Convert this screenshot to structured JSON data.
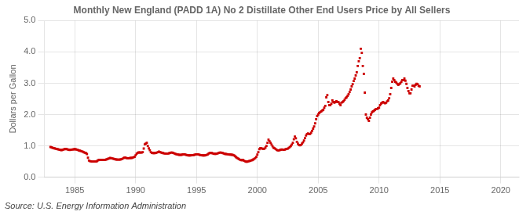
{
  "chart_data": {
    "type": "scatter",
    "title": "Monthly New England (PADD 1A) No 2 Distillate Other End Users Price by All Sellers",
    "ylabel": "Dollars per Gallon",
    "annotations": [
      "Source: U.S. Energy Information Administration"
    ],
    "color": "#CC0000",
    "marker": "square",
    "grid": true,
    "xlim": [
      1982.5,
      2021.5
    ],
    "ylim": [
      0.0,
      5.0
    ],
    "xticks": [
      1985,
      1990,
      1995,
      2000,
      2005,
      2010,
      2015,
      2020
    ],
    "yticks": [
      {
        "value": 0.0,
        "label": "0.0"
      },
      {
        "value": 1.0,
        "label": "1.0"
      },
      {
        "value": 2.0,
        "label": "2.0"
      },
      {
        "value": 3.0,
        "label": "3.0"
      },
      {
        "value": 4.0,
        "label": "4.0"
      },
      {
        "value": 5.0,
        "label": "5.0"
      }
    ],
    "x": [
      1983.0,
      1983.083,
      1983.167,
      1983.25,
      1983.333,
      1983.417,
      1983.5,
      1983.583,
      1983.667,
      1983.75,
      1983.833,
      1983.917,
      1984.0,
      1984.083,
      1984.167,
      1984.25,
      1984.333,
      1984.417,
      1984.5,
      1984.583,
      1984.667,
      1984.75,
      1984.833,
      1984.917,
      1985.0,
      1985.083,
      1985.167,
      1985.25,
      1985.333,
      1985.417,
      1985.5,
      1985.583,
      1985.667,
      1985.75,
      1985.833,
      1985.917,
      1986.0,
      1986.083,
      1986.167,
      1986.25,
      1986.333,
      1986.417,
      1986.5,
      1986.583,
      1986.667,
      1986.75,
      1986.833,
      1986.917,
      1987.0,
      1987.083,
      1987.167,
      1987.25,
      1987.333,
      1987.417,
      1987.5,
      1987.583,
      1987.667,
      1987.75,
      1987.833,
      1987.917,
      1988.0,
      1988.083,
      1988.167,
      1988.25,
      1988.333,
      1988.417,
      1988.5,
      1988.583,
      1988.667,
      1988.75,
      1988.833,
      1988.917,
      1989.0,
      1989.083,
      1989.167,
      1989.25,
      1989.333,
      1989.417,
      1989.5,
      1989.583,
      1989.667,
      1989.75,
      1989.833,
      1989.917,
      1990.0,
      1990.083,
      1990.167,
      1990.25,
      1990.333,
      1990.417,
      1990.5,
      1990.583,
      1990.667,
      1990.75,
      1990.833,
      1990.917,
      1991.0,
      1991.083,
      1991.167,
      1991.25,
      1991.333,
      1991.417,
      1991.5,
      1991.583,
      1991.667,
      1991.75,
      1991.833,
      1991.917,
      1992.0,
      1992.083,
      1992.167,
      1992.25,
      1992.333,
      1992.417,
      1992.5,
      1992.583,
      1992.667,
      1992.75,
      1992.833,
      1992.917,
      1993.0,
      1993.083,
      1993.167,
      1993.25,
      1993.333,
      1993.417,
      1993.5,
      1993.583,
      1993.667,
      1993.75,
      1993.833,
      1993.917,
      1994.0,
      1994.083,
      1994.167,
      1994.25,
      1994.333,
      1994.417,
      1994.5,
      1994.583,
      1994.667,
      1994.75,
      1994.833,
      1994.917,
      1995.0,
      1995.083,
      1995.167,
      1995.25,
      1995.333,
      1995.417,
      1995.5,
      1995.583,
      1995.667,
      1995.75,
      1995.833,
      1995.917,
      1996.0,
      1996.083,
      1996.167,
      1996.25,
      1996.333,
      1996.417,
      1996.5,
      1996.583,
      1996.667,
      1996.75,
      1996.833,
      1996.917,
      1997.0,
      1997.083,
      1997.167,
      1997.25,
      1997.333,
      1997.417,
      1997.5,
      1997.583,
      1997.667,
      1997.75,
      1997.833,
      1997.917,
      1998.0,
      1998.083,
      1998.167,
      1998.25,
      1998.333,
      1998.417,
      1998.5,
      1998.583,
      1998.667,
      1998.75,
      1998.833,
      1998.917,
      1999.0,
      1999.083,
      1999.167,
      1999.25,
      1999.333,
      1999.417,
      1999.5,
      1999.583,
      1999.667,
      1999.75,
      1999.833,
      1999.917,
      2000.0,
      2000.083,
      2000.167,
      2000.25,
      2000.333,
      2000.417,
      2000.5,
      2000.583,
      2000.667,
      2000.75,
      2000.833,
      2000.917,
      2001.0,
      2001.083,
      2001.167,
      2001.25,
      2001.333,
      2001.417,
      2001.5,
      2001.583,
      2001.667,
      2001.75,
      2001.833,
      2001.917,
      2002.0,
      2002.083,
      2002.167,
      2002.25,
      2002.333,
      2002.417,
      2002.5,
      2002.583,
      2002.667,
      2002.75,
      2002.833,
      2002.917,
      2003.0,
      2003.083,
      2003.167,
      2003.25,
      2003.333,
      2003.417,
      2003.5,
      2003.583,
      2003.667,
      2003.75,
      2003.833,
      2003.917,
      2004.0,
      2004.083,
      2004.167,
      2004.25,
      2004.333,
      2004.417,
      2004.5,
      2004.583,
      2004.667,
      2004.75,
      2004.833,
      2004.917,
      2005.0,
      2005.083,
      2005.167,
      2005.25,
      2005.333,
      2005.417,
      2005.5,
      2005.583,
      2005.667,
      2005.75,
      2005.833,
      2005.917,
      2006.0,
      2006.083,
      2006.167,
      2006.25,
      2006.333,
      2006.417,
      2006.5,
      2006.583,
      2006.667,
      2006.75,
      2006.833,
      2006.917,
      2007.0,
      2007.083,
      2007.167,
      2007.25,
      2007.333,
      2007.417,
      2007.5,
      2007.583,
      2007.667,
      2007.75,
      2007.833,
      2007.917,
      2008.0,
      2008.083,
      2008.167,
      2008.25,
      2008.333,
      2008.417,
      2008.5,
      2008.583,
      2008.667,
      2008.75,
      2008.833,
      2008.917,
      2009.0,
      2009.083,
      2009.167,
      2009.25,
      2009.333,
      2009.417,
      2009.5,
      2009.583,
      2009.667,
      2009.75,
      2009.833,
      2009.917,
      2010.0,
      2010.083,
      2010.167,
      2010.25,
      2010.333,
      2010.417,
      2010.5,
      2010.583,
      2010.667,
      2010.75,
      2010.833,
      2010.917,
      2011.0,
      2011.083,
      2011.167,
      2011.25,
      2011.333,
      2011.417,
      2011.5,
      2011.583,
      2011.667,
      2011.75,
      2011.833,
      2011.917,
      2012.0,
      2012.083,
      2012.167,
      2012.25,
      2012.333,
      2012.417,
      2012.5,
      2012.583,
      2012.667,
      2012.75,
      2012.833,
      2012.917,
      2013.0,
      2013.083,
      2013.167,
      2013.25,
      2013.333
    ],
    "values": [
      0.965,
      0.955,
      0.94,
      0.93,
      0.92,
      0.91,
      0.9,
      0.895,
      0.885,
      0.875,
      0.87,
      0.865,
      0.875,
      0.885,
      0.895,
      0.905,
      0.895,
      0.885,
      0.875,
      0.87,
      0.875,
      0.88,
      0.885,
      0.89,
      0.895,
      0.89,
      0.88,
      0.87,
      0.855,
      0.845,
      0.835,
      0.825,
      0.81,
      0.795,
      0.78,
      0.77,
      0.74,
      0.62,
      0.53,
      0.51,
      0.505,
      0.5,
      0.5,
      0.5,
      0.5,
      0.5,
      0.515,
      0.54,
      0.555,
      0.555,
      0.555,
      0.555,
      0.555,
      0.555,
      0.555,
      0.565,
      0.575,
      0.59,
      0.6,
      0.615,
      0.6,
      0.6,
      0.59,
      0.58,
      0.57,
      0.565,
      0.56,
      0.56,
      0.56,
      0.565,
      0.575,
      0.585,
      0.61,
      0.625,
      0.62,
      0.61,
      0.605,
      0.605,
      0.61,
      0.615,
      0.615,
      0.625,
      0.635,
      0.65,
      0.7,
      0.75,
      0.78,
      0.79,
      0.79,
      0.785,
      0.785,
      0.8,
      0.915,
      1.05,
      1.07,
      1.1,
      1.0,
      0.92,
      0.86,
      0.8,
      0.775,
      0.77,
      0.77,
      0.77,
      0.775,
      0.785,
      0.8,
      0.815,
      0.8,
      0.79,
      0.78,
      0.77,
      0.76,
      0.755,
      0.755,
      0.755,
      0.755,
      0.765,
      0.775,
      0.785,
      0.785,
      0.775,
      0.76,
      0.745,
      0.735,
      0.725,
      0.72,
      0.715,
      0.71,
      0.715,
      0.72,
      0.73,
      0.73,
      0.72,
      0.71,
      0.7,
      0.695,
      0.695,
      0.695,
      0.7,
      0.7,
      0.705,
      0.715,
      0.725,
      0.73,
      0.73,
      0.725,
      0.715,
      0.705,
      0.7,
      0.695,
      0.695,
      0.695,
      0.7,
      0.71,
      0.725,
      0.755,
      0.77,
      0.775,
      0.77,
      0.76,
      0.75,
      0.745,
      0.745,
      0.75,
      0.76,
      0.775,
      0.785,
      0.785,
      0.78,
      0.77,
      0.755,
      0.745,
      0.74,
      0.735,
      0.73,
      0.725,
      0.72,
      0.72,
      0.715,
      0.71,
      0.695,
      0.67,
      0.64,
      0.615,
      0.595,
      0.575,
      0.555,
      0.545,
      0.545,
      0.545,
      0.525,
      0.505,
      0.495,
      0.495,
      0.505,
      0.515,
      0.525,
      0.535,
      0.545,
      0.565,
      0.585,
      0.61,
      0.65,
      0.72,
      0.8,
      0.895,
      0.93,
      0.92,
      0.91,
      0.9,
      0.91,
      0.945,
      1.0,
      1.1,
      1.2,
      1.15,
      1.1,
      1.04,
      0.985,
      0.94,
      0.925,
      0.9,
      0.875,
      0.855,
      0.855,
      0.865,
      0.875,
      0.885,
      0.88,
      0.875,
      0.88,
      0.895,
      0.905,
      0.91,
      0.935,
      0.96,
      0.995,
      1.04,
      1.1,
      1.21,
      1.3,
      1.24,
      1.13,
      1.07,
      1.03,
      1.02,
      1.03,
      1.07,
      1.11,
      1.17,
      1.25,
      1.33,
      1.38,
      1.4,
      1.38,
      1.38,
      1.42,
      1.48,
      1.55,
      1.62,
      1.72,
      1.85,
      1.95,
      2.0,
      2.05,
      2.08,
      2.1,
      2.13,
      2.15,
      2.22,
      2.28,
      2.55,
      2.62,
      2.4,
      2.3,
      2.3,
      2.35,
      2.45,
      2.4,
      2.38,
      2.4,
      2.43,
      2.4,
      2.4,
      2.35,
      2.3,
      2.38,
      2.4,
      2.43,
      2.47,
      2.52,
      2.55,
      2.6,
      2.65,
      2.72,
      2.8,
      2.9,
      2.97,
      3.07,
      3.15,
      3.25,
      3.35,
      3.55,
      3.7,
      3.8,
      4.1,
      3.97,
      3.55,
      3.3,
      2.7,
      2.0,
      1.9,
      1.85,
      1.8,
      1.9,
      2.0,
      2.07,
      2.1,
      2.12,
      2.15,
      2.18,
      2.18,
      2.2,
      2.22,
      2.3,
      2.35,
      2.38,
      2.4,
      2.38,
      2.36,
      2.38,
      2.42,
      2.45,
      2.52,
      2.65,
      2.85,
      3.05,
      3.15,
      3.1,
      3.05,
      3.02,
      2.98,
      2.95,
      2.97,
      3.0,
      3.05,
      3.1,
      3.1,
      3.15,
      3.08,
      2.98,
      2.85,
      2.75,
      2.68,
      2.68,
      2.8,
      2.92,
      2.92,
      2.9,
      2.95,
      2.98,
      2.97,
      2.92,
      2.9
    ]
  }
}
